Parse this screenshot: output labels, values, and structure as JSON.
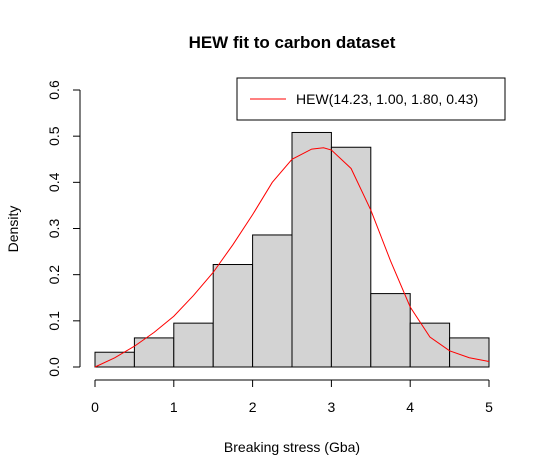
{
  "chart_data": {
    "type": "bar",
    "title": "HEW fit to carbon dataset",
    "xlabel": "Breaking stress (Gba)",
    "ylabel": "Density",
    "xlim": [
      0,
      5
    ],
    "ylim": [
      0,
      0.6
    ],
    "x_ticks": [
      "0",
      "1",
      "2",
      "3",
      "4",
      "5"
    ],
    "y_ticks": [
      "0.0",
      "0.1",
      "0.2",
      "0.3",
      "0.4",
      "0.5",
      "0.6"
    ],
    "x_tick_values": [
      0,
      1,
      2,
      3,
      4,
      5
    ],
    "y_tick_values": [
      0,
      0.1,
      0.2,
      0.3,
      0.4,
      0.5,
      0.6
    ],
    "histogram": {
      "bin_edges": [
        0,
        0.5,
        1.0,
        1.5,
        2.0,
        2.5,
        3.0,
        3.5,
        4.0,
        4.5,
        5.0
      ],
      "density": [
        0.032,
        0.063,
        0.095,
        0.222,
        0.286,
        0.508,
        0.476,
        0.159,
        0.095,
        0.063
      ],
      "fill": "#d3d3d3",
      "stroke": "#000000"
    },
    "series": [
      {
        "name": "HEW(14.23, 1.00, 1.80, 0.43)",
        "type": "line",
        "color": "#ff0000",
        "x": [
          0,
          0.25,
          0.5,
          0.75,
          1.0,
          1.25,
          1.5,
          1.75,
          2.0,
          2.25,
          2.5,
          2.75,
          2.9,
          3.0,
          3.25,
          3.5,
          3.75,
          4.0,
          4.25,
          4.5,
          4.75,
          5.0
        ],
        "y": [
          0.0,
          0.02,
          0.045,
          0.075,
          0.11,
          0.155,
          0.205,
          0.265,
          0.33,
          0.4,
          0.45,
          0.472,
          0.475,
          0.47,
          0.43,
          0.34,
          0.23,
          0.13,
          0.065,
          0.035,
          0.02,
          0.012
        ]
      }
    ],
    "legend": {
      "position": "top-right"
    },
    "grid": false
  }
}
